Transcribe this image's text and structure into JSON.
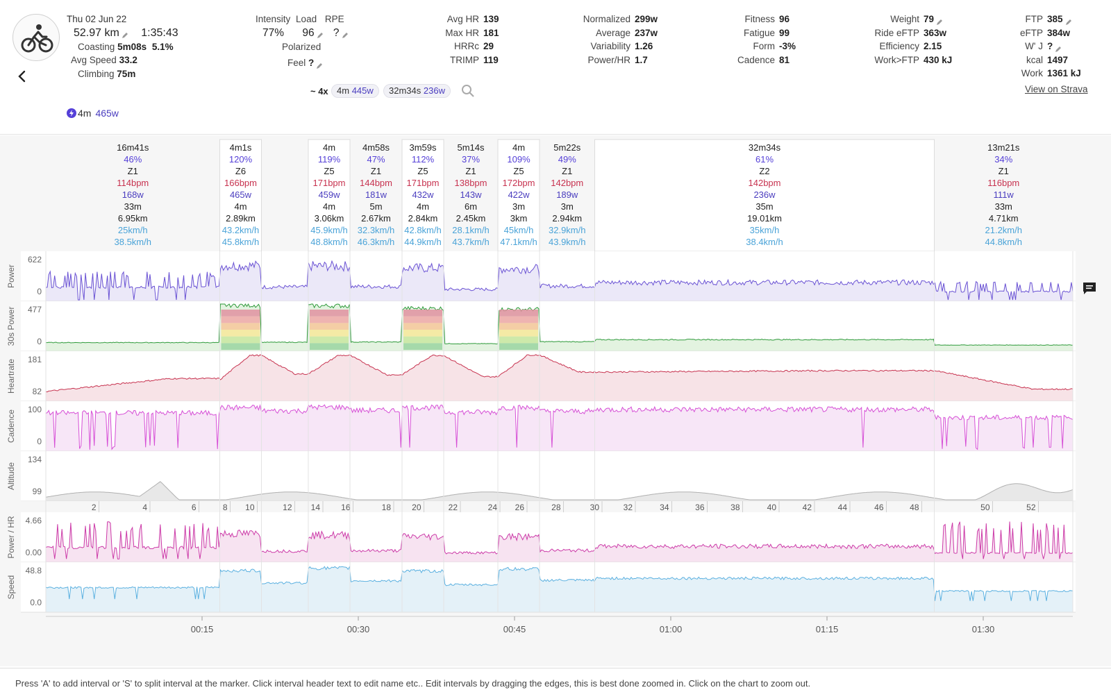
{
  "activity": {
    "date": "Thu 02 Jun 22",
    "distance": "52.97 km",
    "duration": "1:35:43",
    "coasting_label": "Coasting",
    "coasting_time": "5m08s",
    "coasting_pct": "5.1%",
    "avg_speed_label": "Avg Speed",
    "avg_speed": "33.2",
    "climbing_label": "Climbing",
    "climbing": "75m"
  },
  "load_stats": {
    "intensity_label": "Intensity",
    "intensity": "77%",
    "load_label": "Load",
    "load": "96",
    "rpe_label": "RPE",
    "rpe": "?",
    "polarized": "Polarized",
    "feel_label": "Feel",
    "feel": "?"
  },
  "hr_stats": [
    {
      "label": "Avg HR",
      "value": "139"
    },
    {
      "label": "Max HR",
      "value": "181"
    },
    {
      "label": "HRRc",
      "value": "29"
    },
    {
      "label": "TRIMP",
      "value": "119"
    }
  ],
  "power_stats": [
    {
      "label": "Normalized",
      "value": "299w"
    },
    {
      "label": "Average",
      "value": "237w"
    },
    {
      "label": "Variability",
      "value": "1.26"
    },
    {
      "label": "Power/HR",
      "value": "1.7"
    }
  ],
  "fitness_stats": [
    {
      "label": "Fitness",
      "value": "96"
    },
    {
      "label": "Fatigue",
      "value": "99"
    },
    {
      "label": "Form",
      "value": "-3%"
    },
    {
      "label": "Cadence",
      "value": "81"
    }
  ],
  "weight_stats": [
    {
      "label": "Weight",
      "value": "79"
    },
    {
      "label": "Ride eFTP",
      "value": "363w"
    },
    {
      "label": "Efficiency",
      "value": "2.15"
    },
    {
      "label": "Work>FTP",
      "value": "430 kJ"
    }
  ],
  "ftp_stats": [
    {
      "label": "FTP",
      "value": "385"
    },
    {
      "label": "eFTP",
      "value": "384w"
    },
    {
      "label": "W' J",
      "value": "?"
    },
    {
      "label": "kcal",
      "value": "1497"
    },
    {
      "label": "Work",
      "value": "1361 kJ"
    }
  ],
  "search": {
    "prefix": "~ 4x",
    "pill1_time": "4m",
    "pill1_watts": "445w",
    "pill2_time": "32m34s",
    "pill2_watts": "236w"
  },
  "view_on_strava": "View on Strava",
  "best_effort": {
    "time": "4m",
    "watts": "465w"
  },
  "intervals": [
    {
      "dur": "16m41s",
      "pct": "46%",
      "zone": "Z1",
      "hr": "114bpm",
      "w": "168w",
      "t": "33m",
      "km": "6.95km",
      "avg": "25km/h",
      "max": "38.5km/h",
      "s": 0,
      "e": 16.7,
      "hl": false
    },
    {
      "dur": "4m1s",
      "pct": "120%",
      "zone": "Z6",
      "hr": "166bpm",
      "w": "465w",
      "t": "4m",
      "km": "2.89km",
      "avg": "43.2km/h",
      "max": "45.8km/h",
      "s": 16.7,
      "e": 20.7,
      "hl": true
    },
    {
      "dur": "4m",
      "pct": "119%",
      "zone": "Z5",
      "hr": "171bpm",
      "w": "459w",
      "t": "4m",
      "km": "3.06km",
      "avg": "45.9km/h",
      "max": "48.8km/h",
      "s": 25.2,
      "e": 29.2,
      "hl": true
    },
    {
      "dur": "4m58s",
      "pct": "47%",
      "zone": "Z1",
      "hr": "144bpm",
      "w": "181w",
      "t": "5m",
      "km": "2.67km",
      "avg": "32.3km/h",
      "max": "46.3km/h",
      "s": 29.2,
      "e": 34.2,
      "hl": false
    },
    {
      "dur": "3m59s",
      "pct": "112%",
      "zone": "Z5",
      "hr": "171bpm",
      "w": "432w",
      "t": "4m",
      "km": "2.84km",
      "avg": "42.8km/h",
      "max": "44.9km/h",
      "s": 34.2,
      "e": 38.2,
      "hl": true
    },
    {
      "dur": "5m14s",
      "pct": "37%",
      "zone": "Z1",
      "hr": "138bpm",
      "w": "143w",
      "t": "6m",
      "km": "2.45km",
      "avg": "28.1km/h",
      "max": "43.7km/h",
      "s": 38.2,
      "e": 43.4,
      "hl": false
    },
    {
      "dur": "4m",
      "pct": "109%",
      "zone": "Z5",
      "hr": "172bpm",
      "w": "422w",
      "t": "3m",
      "km": "3km",
      "avg": "45km/h",
      "max": "47.1km/h",
      "s": 43.4,
      "e": 47.4,
      "hl": true
    },
    {
      "dur": "5m22s",
      "pct": "49%",
      "zone": "Z1",
      "hr": "142bpm",
      "w": "189w",
      "t": "3m",
      "km": "2.94km",
      "avg": "32.9km/h",
      "max": "43.9km/h",
      "s": 47.4,
      "e": 52.7,
      "hl": false
    },
    {
      "dur": "32m34s",
      "pct": "61%",
      "zone": "Z2",
      "hr": "142bpm",
      "w": "236w",
      "t": "35m",
      "km": "19.01km",
      "avg": "35km/h",
      "max": "38.4km/h",
      "s": 52.7,
      "e": 85.3,
      "hl": true
    },
    {
      "dur": "13m21s",
      "pct": "34%",
      "zone": "Z1",
      "hr": "116bpm",
      "w": "111w",
      "t": "33m",
      "km": "4.71km",
      "avg": "21.2km/h",
      "max": "44.8km/h",
      "s": 85.3,
      "e": 98.6,
      "hl": false
    }
  ],
  "chart_data": {
    "type": "line",
    "x_unit": "minutes",
    "x_range": [
      0,
      98.6
    ],
    "time_ticks": [
      {
        "m": 15,
        "label": "00:15"
      },
      {
        "m": 30,
        "label": "00:30"
      },
      {
        "m": 45,
        "label": "00:45"
      },
      {
        "m": 60,
        "label": "01:00"
      },
      {
        "m": 75,
        "label": "01:15"
      },
      {
        "m": 90,
        "label": "01:30"
      }
    ],
    "distance_ticks": [
      {
        "m": 5.1,
        "label": "2"
      },
      {
        "m": 10,
        "label": "4"
      },
      {
        "m": 14.7,
        "label": "6"
      },
      {
        "m": 17.7,
        "label": "8"
      },
      {
        "m": 20.3,
        "label": "10"
      },
      {
        "m": 23.9,
        "label": "12"
      },
      {
        "m": 26.6,
        "label": "14"
      },
      {
        "m": 29.5,
        "label": "16"
      },
      {
        "m": 33.4,
        "label": "18"
      },
      {
        "m": 36.3,
        "label": "20"
      },
      {
        "m": 39.8,
        "label": "22"
      },
      {
        "m": 43.6,
        "label": "24"
      },
      {
        "m": 46.2,
        "label": "26"
      },
      {
        "m": 49.7,
        "label": "28"
      },
      {
        "m": 53.4,
        "label": "30"
      },
      {
        "m": 56.6,
        "label": "32"
      },
      {
        "m": 60.1,
        "label": "34"
      },
      {
        "m": 63.5,
        "label": "36"
      },
      {
        "m": 66.9,
        "label": "38"
      },
      {
        "m": 70.4,
        "label": "40"
      },
      {
        "m": 73.8,
        "label": "42"
      },
      {
        "m": 77.2,
        "label": "44"
      },
      {
        "m": 80.7,
        "label": "46"
      },
      {
        "m": 84.1,
        "label": "48"
      },
      {
        "m": 90.9,
        "label": "50"
      },
      {
        "m": 95.3,
        "label": "52"
      }
    ],
    "tracks": [
      {
        "name": "Power",
        "ymax": "622",
        "ymin": "0",
        "top": 0,
        "max": 622,
        "color": "#6a52d4",
        "fill": "#ebe8f8"
      },
      {
        "name": "30s Power",
        "ymax": "477",
        "ymin": "0",
        "top": 0,
        "max": 477,
        "color": "#2e9a3a",
        "fill": "#e3f3e0"
      },
      {
        "name": "Heartrate",
        "ymax": "181",
        "ymin": "82",
        "max": 181,
        "min": 82,
        "color": "#c7324f",
        "fill": "#f7e3e7"
      },
      {
        "name": "Cadence",
        "ymax": "100",
        "ymin": "0",
        "max": 100,
        "color": "#d64ed6",
        "fill": "#f7e6f7"
      },
      {
        "name": "Altitude",
        "ymax": "134",
        "ymin": "99",
        "max": 134,
        "min": 99,
        "color": "#b0b0b0",
        "fill": "#e8e8e8"
      },
      {
        "name": "Power / HR",
        "ymax": "4.66",
        "ymin": "0.00",
        "max": 4.66,
        "color": "#cc3aa8",
        "fill": "#f7e3f1"
      },
      {
        "name": "Speed",
        "ymax": "48.8",
        "ymin": "0.0",
        "max": 48.8,
        "color": "#5ab0e0",
        "fill": "#e4f1f8"
      }
    ],
    "segments": [
      {
        "s": 0,
        "e": 16.7,
        "power": 168,
        "p30": 168,
        "hr": [
          100,
          128
        ],
        "cad": 80,
        "spd": 25,
        "noisy": true
      },
      {
        "s": 16.7,
        "e": 20.7,
        "power": 465,
        "p30": 465,
        "hr": [
          125,
          178
        ],
        "cad": 92,
        "spd": 43.2,
        "noisy": false
      },
      {
        "s": 20.7,
        "e": 25.2,
        "power": 175,
        "p30": 175,
        "hr": [
          178,
          138
        ],
        "cad": 85,
        "spd": 30,
        "noisy": false
      },
      {
        "s": 25.2,
        "e": 29.2,
        "power": 459,
        "p30": 459,
        "hr": [
          138,
          178
        ],
        "cad": 93,
        "spd": 45.9,
        "noisy": false
      },
      {
        "s": 29.2,
        "e": 34.2,
        "power": 181,
        "p30": 181,
        "hr": [
          178,
          136
        ],
        "cad": 86,
        "spd": 32.3,
        "noisy": false
      },
      {
        "s": 34.2,
        "e": 38.2,
        "power": 432,
        "p30": 432,
        "hr": [
          136,
          178
        ],
        "cad": 92,
        "spd": 42.8,
        "noisy": false
      },
      {
        "s": 38.2,
        "e": 43.4,
        "power": 143,
        "p30": 143,
        "hr": [
          178,
          132
        ],
        "cad": 82,
        "spd": 28.1,
        "noisy": false
      },
      {
        "s": 43.4,
        "e": 47.4,
        "power": 422,
        "p30": 422,
        "hr": [
          132,
          179
        ],
        "cad": 92,
        "spd": 45,
        "noisy": false
      },
      {
        "s": 47.4,
        "e": 52.7,
        "power": 189,
        "p30": 189,
        "hr": [
          179,
          142
        ],
        "cad": 84,
        "spd": 32.9,
        "noisy": false
      },
      {
        "s": 52.7,
        "e": 85.3,
        "power": 236,
        "p30": 236,
        "hr": [
          142,
          145
        ],
        "cad": 88,
        "spd": 35,
        "noisy": false
      },
      {
        "s": 85.3,
        "e": 98.6,
        "power": 111,
        "p30": 111,
        "hr": [
          145,
          105
        ],
        "cad": 70,
        "spd": 21.2,
        "noisy": true
      }
    ]
  },
  "footer_text": "Press 'A' to add interval or 'S' to split interval at the marker. Click interval header text to edit name etc.. Edit intervals by dragging the edges, this is best done zoomed in. Click on the chart to zoom out."
}
